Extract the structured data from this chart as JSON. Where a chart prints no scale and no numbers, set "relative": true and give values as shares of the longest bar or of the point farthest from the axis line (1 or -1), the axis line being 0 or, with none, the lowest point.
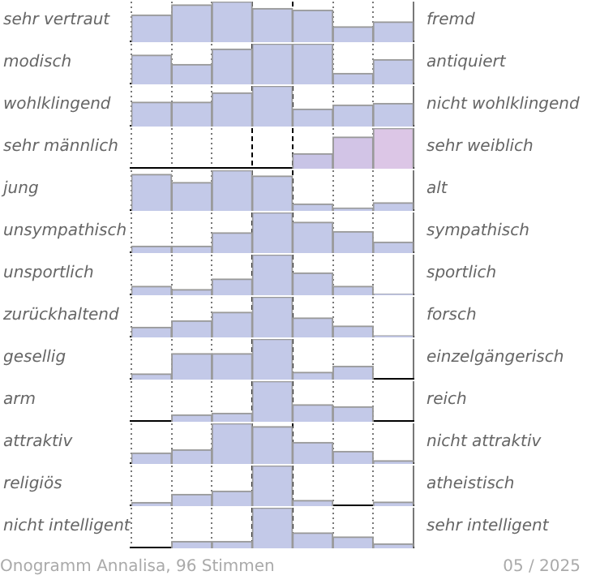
{
  "chart_data": [
    {
      "type": "bar",
      "relative": true,
      "ylabel": "sehr vertraut",
      "y2label": "fremd",
      "categories": [
        null,
        null,
        null,
        null,
        null,
        null,
        null
      ],
      "values": [
        0.67,
        0.92,
        1,
        0.83,
        0.79,
        0.38,
        0.5
      ],
      "color": "#c3c9e8",
      "grid": "x",
      "tick_labels": false
    },
    {
      "type": "bar",
      "relative": true,
      "ylabel": "modisch",
      "y2label": "antiquiert",
      "categories": [
        null,
        null,
        null,
        null,
        null,
        null,
        null
      ],
      "values": [
        0.72,
        0.49,
        0.87,
        1,
        1,
        0.27,
        0.61
      ],
      "color": "#c3c9e8",
      "grid": "x",
      "tick_labels": false
    },
    {
      "type": "bar",
      "relative": true,
      "ylabel": "wohlklingend",
      "y2label": "nicht wohlklingend",
      "categories": [
        null,
        null,
        null,
        null,
        null,
        null,
        null
      ],
      "values": [
        0.6,
        0.6,
        0.83,
        1,
        0.43,
        0.53,
        0.57
      ],
      "color": "#c3c9e8",
      "grid": "x",
      "tick_labels": false
    },
    {
      "type": "bar",
      "relative": true,
      "ylabel": "sehr männlich",
      "y2label": "sehr weiblich",
      "categories": [
        null,
        null,
        null,
        null,
        null,
        null,
        null
      ],
      "values": [
        0,
        0,
        0,
        0,
        0.37,
        0.78,
        1
      ],
      "colors": [
        "#c3c9e8",
        "#c3c9e8",
        "#c3c9e8",
        "#c3c9e8",
        "#c8c4e6",
        "#d2c4e6",
        "#dcc6e6"
      ],
      "grid": "x",
      "tick_labels": false
    },
    {
      "type": "bar",
      "relative": true,
      "ylabel": "jung",
      "y2label": "alt",
      "categories": [
        null,
        null,
        null,
        null,
        null,
        null,
        null
      ],
      "values": [
        0.9,
        0.7,
        1,
        0.86,
        0.17,
        0.07,
        0.2
      ],
      "color": "#c3c9e8",
      "grid": "x",
      "tick_labels": false
    },
    {
      "type": "bar",
      "relative": true,
      "ylabel": "unsympathisch",
      "y2label": "sympathisch",
      "categories": [
        null,
        null,
        null,
        null,
        null,
        null,
        null
      ],
      "values": [
        0.17,
        0.17,
        0.5,
        1,
        0.76,
        0.53,
        0.27
      ],
      "color": "#c3c9e8",
      "grid": "x",
      "tick_labels": false
    },
    {
      "type": "bar",
      "relative": true,
      "ylabel": "unsportlich",
      "y2label": "sportlich",
      "categories": [
        null,
        null,
        null,
        null,
        null,
        null,
        null
      ],
      "values": [
        0.22,
        0.14,
        0.4,
        1,
        0.55,
        0.22,
        0.03
      ],
      "color": "#c3c9e8",
      "grid": "x",
      "tick_labels": false
    },
    {
      "type": "bar",
      "relative": true,
      "ylabel": "zurückhaltend",
      "y2label": "forsch",
      "categories": [
        null,
        null,
        null,
        null,
        null,
        null,
        null
      ],
      "values": [
        0.25,
        0.41,
        0.62,
        1,
        0.48,
        0.28,
        0.04
      ],
      "color": "#c3c9e8",
      "grid": "x",
      "tick_labels": false
    },
    {
      "type": "bar",
      "relative": true,
      "ylabel": "gesellig",
      "y2label": "einzelgängerisch",
      "categories": [
        null,
        null,
        null,
        null,
        null,
        null,
        null
      ],
      "values": [
        0.14,
        0.64,
        0.64,
        1,
        0.18,
        0.33,
        0
      ],
      "color": "#c3c9e8",
      "grid": "x",
      "tick_labels": false
    },
    {
      "type": "bar",
      "relative": true,
      "ylabel": "arm",
      "y2label": "reich",
      "categories": [
        null,
        null,
        null,
        null,
        null,
        null,
        null
      ],
      "values": [
        0,
        0.17,
        0.21,
        1,
        0.42,
        0.37,
        0
      ],
      "color": "#c3c9e8",
      "grid": "x",
      "tick_labels": false
    },
    {
      "type": "bar",
      "relative": true,
      "ylabel": "attraktiv",
      "y2label": "nicht attraktiv",
      "categories": [
        null,
        null,
        null,
        null,
        null,
        null,
        null
      ],
      "values": [
        0.27,
        0.35,
        1,
        0.92,
        0.53,
        0.31,
        0.08
      ],
      "color": "#c3c9e8",
      "grid": "x",
      "tick_labels": false
    },
    {
      "type": "bar",
      "relative": true,
      "ylabel": "religiös",
      "y2label": "atheistisch",
      "categories": [
        null,
        null,
        null,
        null,
        null,
        null,
        null
      ],
      "values": [
        0.09,
        0.29,
        0.37,
        1,
        0.14,
        0,
        0.1
      ],
      "color": "#c3c9e8",
      "grid": "x",
      "tick_labels": false
    },
    {
      "type": "bar",
      "relative": true,
      "ylabel": "nicht intelligent",
      "y2label": "sehr intelligent",
      "categories": [
        null,
        null,
        null,
        null,
        null,
        null,
        null
      ],
      "values": [
        0,
        0.17,
        0.17,
        1,
        0.38,
        0.28,
        0.11
      ],
      "color": "#c3c9e8",
      "grid": "x",
      "tick_labels": false,
      "annotations": [
        "Onogramm Annalisa, 96 Stimmen",
        "05 / 2025"
      ]
    }
  ]
}
